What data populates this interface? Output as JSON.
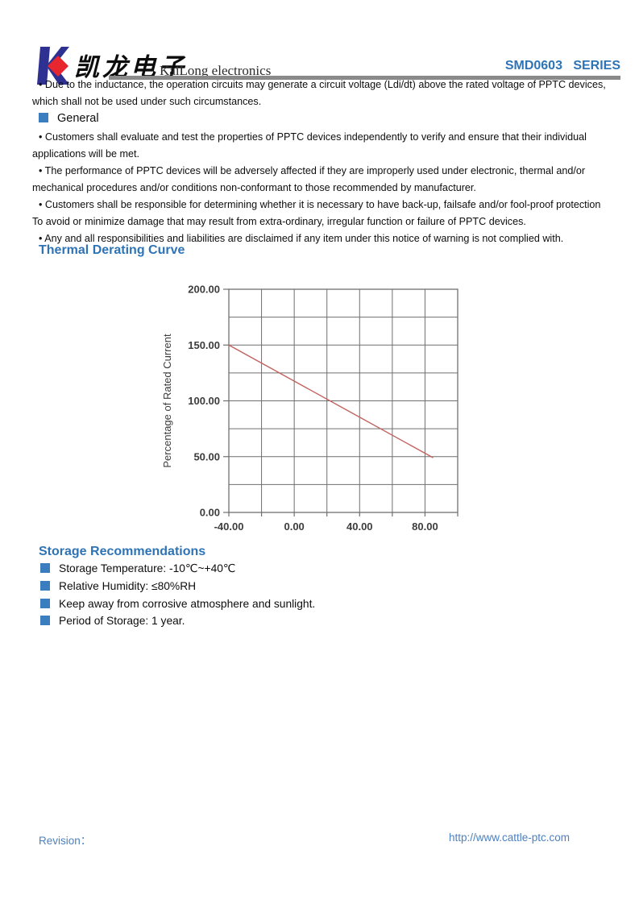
{
  "header": {
    "brand_chinese": "凯龙电子",
    "brand_english": "KaiLong electronics",
    "series": "SMD0603   SERIES",
    "accent_blue": "#2e74b6",
    "logo_blue": "#2e3192",
    "logo_red": "#e8262d"
  },
  "notice": {
    "lines": [
      "• Due to the inductance, the operation circuits may generate a circuit voltage (Ldi/dt) above the rated voltage of PPTC devices,",
      "which shall not be used under such circumstances."
    ]
  },
  "general": {
    "title": "General",
    "lines": [
      "• Customers shall evaluate and test the properties of PPTC devices independently to verify and ensure that their individual",
      "applications will be met.",
      "• The performance of PPTC devices will be adversely affected if they are improperly used under electronic, thermal and/or",
      "mechanical procedures and/or conditions non-conformant to those recommended by manufacturer.",
      "• Customers shall be responsible for determining whether it is necessary to have back-up, failsafe and/or fool-proof protection",
      "To avoid or minimize damage that may result from extra-ordinary, irregular function or failure of PPTC devices.",
      "• Any and all responsibilities and liabilities are disclaimed if any item under this notice of warning is not complied with."
    ]
  },
  "derating": {
    "title": "Thermal Derating Curve"
  },
  "chart_data": {
    "type": "line",
    "title": "Thermal Derating Curve",
    "xlabel": "",
    "ylabel": "Percentage of Rated Current",
    "xlim": [
      -40,
      100
    ],
    "ylim": [
      0,
      200
    ],
    "x_grid_step": 20,
    "y_grid_step": 25,
    "grid": true,
    "xticks": [
      {
        "v": -40,
        "label": "-40.00"
      },
      {
        "v": 0,
        "label": "0.00"
      },
      {
        "v": 40,
        "label": "40.00"
      },
      {
        "v": 80,
        "label": "80.00"
      }
    ],
    "yticks": [
      {
        "v": 0,
        "label": "0.00"
      },
      {
        "v": 50,
        "label": "50.00"
      },
      {
        "v": 100,
        "label": "100.00"
      },
      {
        "v": 150,
        "label": "150.00"
      },
      {
        "v": 200,
        "label": "200.00"
      }
    ],
    "series": [
      {
        "name": "derating-line",
        "color": "#c2625f",
        "points": [
          [
            -40,
            150
          ],
          [
            85,
            49
          ]
        ]
      }
    ],
    "grid_color": "#6f6f6f",
    "tick_text_color": "#3c3c3c"
  },
  "storage": {
    "title": "Storage Recommendations",
    "items": [
      "Storage Temperature: -10℃~+40℃",
      "Relative Humidity: ≤80%RH",
      "Keep away from corrosive atmosphere and sunlight.",
      "Period of Storage: 1 year."
    ]
  },
  "footer": {
    "revision_label": "Revision：",
    "url": "http://www.cattle-ptc.com"
  }
}
